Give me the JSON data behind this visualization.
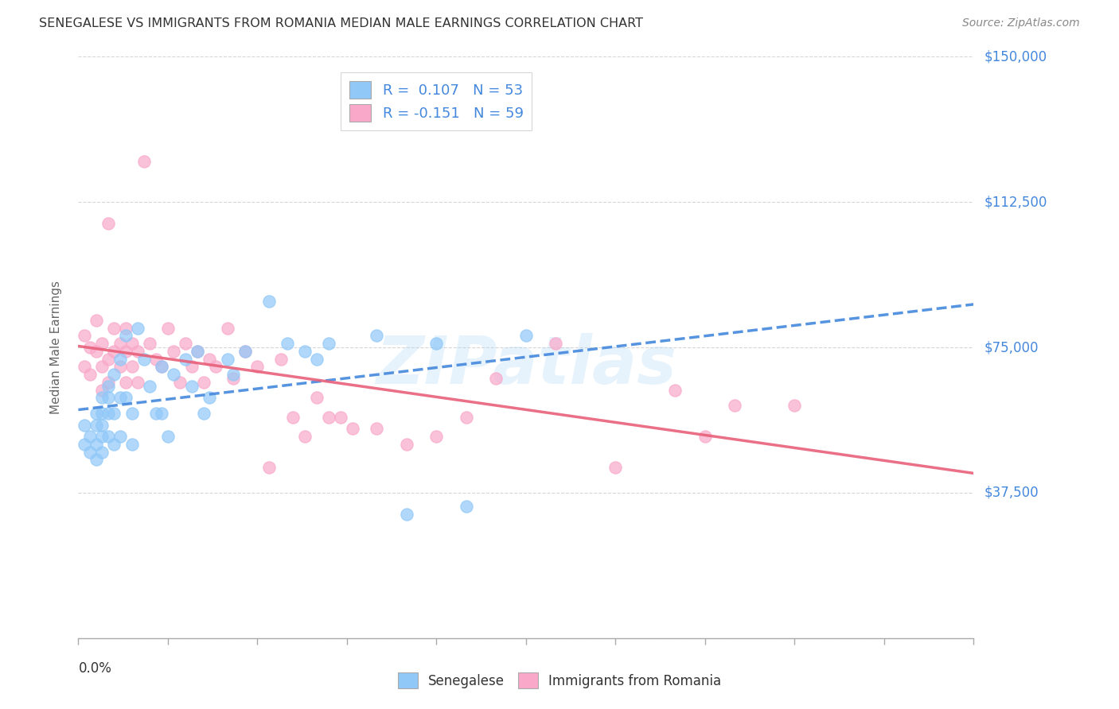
{
  "title": "SENEGALESE VS IMMIGRANTS FROM ROMANIA MEDIAN MALE EARNINGS CORRELATION CHART",
  "source": "Source: ZipAtlas.com",
  "ylabel": "Median Male Earnings",
  "yticks": [
    0,
    37500,
    75000,
    112500,
    150000
  ],
  "ytick_labels": [
    "",
    "$37,500",
    "$75,000",
    "$112,500",
    "$150,000"
  ],
  "xmin": 0.0,
  "xmax": 0.15,
  "ymin": 0,
  "ymax": 150000,
  "blue_color": "#90C8F8",
  "pink_color": "#F9A8C9",
  "blue_line_color": "#4488DD",
  "pink_line_color": "#E8607A",
  "label_color": "#4488DD",
  "blue_R": "0.107",
  "blue_N": "53",
  "pink_R": "-0.151",
  "pink_N": "59",
  "watermark": "ZIPatlas",
  "senegalese_x": [
    0.001,
    0.001,
    0.002,
    0.002,
    0.003,
    0.003,
    0.003,
    0.003,
    0.004,
    0.004,
    0.004,
    0.004,
    0.004,
    0.005,
    0.005,
    0.005,
    0.005,
    0.006,
    0.006,
    0.006,
    0.007,
    0.007,
    0.007,
    0.008,
    0.008,
    0.009,
    0.009,
    0.01,
    0.011,
    0.012,
    0.013,
    0.014,
    0.014,
    0.015,
    0.016,
    0.018,
    0.019,
    0.02,
    0.021,
    0.022,
    0.025,
    0.026,
    0.028,
    0.032,
    0.035,
    0.038,
    0.04,
    0.042,
    0.05,
    0.055,
    0.06,
    0.065,
    0.075
  ],
  "senegalese_y": [
    50000,
    55000,
    48000,
    52000,
    58000,
    55000,
    50000,
    46000,
    62000,
    58000,
    55000,
    52000,
    48000,
    65000,
    62000,
    58000,
    52000,
    68000,
    58000,
    50000,
    72000,
    62000,
    52000,
    78000,
    62000,
    58000,
    50000,
    80000,
    72000,
    65000,
    58000,
    70000,
    58000,
    52000,
    68000,
    72000,
    65000,
    74000,
    58000,
    62000,
    72000,
    68000,
    74000,
    87000,
    76000,
    74000,
    72000,
    76000,
    78000,
    32000,
    76000,
    34000,
    78000
  ],
  "romania_x": [
    0.001,
    0.001,
    0.002,
    0.002,
    0.003,
    0.003,
    0.004,
    0.004,
    0.004,
    0.005,
    0.005,
    0.005,
    0.006,
    0.006,
    0.007,
    0.007,
    0.008,
    0.008,
    0.008,
    0.009,
    0.009,
    0.01,
    0.01,
    0.011,
    0.012,
    0.013,
    0.014,
    0.015,
    0.016,
    0.017,
    0.018,
    0.019,
    0.02,
    0.021,
    0.022,
    0.023,
    0.025,
    0.026,
    0.028,
    0.03,
    0.032,
    0.034,
    0.036,
    0.038,
    0.04,
    0.042,
    0.044,
    0.046,
    0.05,
    0.055,
    0.06,
    0.065,
    0.07,
    0.08,
    0.09,
    0.1,
    0.105,
    0.11,
    0.12
  ],
  "romania_y": [
    70000,
    78000,
    75000,
    68000,
    82000,
    74000,
    76000,
    70000,
    64000,
    107000,
    72000,
    66000,
    80000,
    74000,
    76000,
    70000,
    74000,
    66000,
    80000,
    76000,
    70000,
    74000,
    66000,
    123000,
    76000,
    72000,
    70000,
    80000,
    74000,
    66000,
    76000,
    70000,
    74000,
    66000,
    72000,
    70000,
    80000,
    67000,
    74000,
    70000,
    44000,
    72000,
    57000,
    52000,
    62000,
    57000,
    57000,
    54000,
    54000,
    50000,
    52000,
    57000,
    67000,
    76000,
    44000,
    64000,
    52000,
    60000,
    60000
  ]
}
